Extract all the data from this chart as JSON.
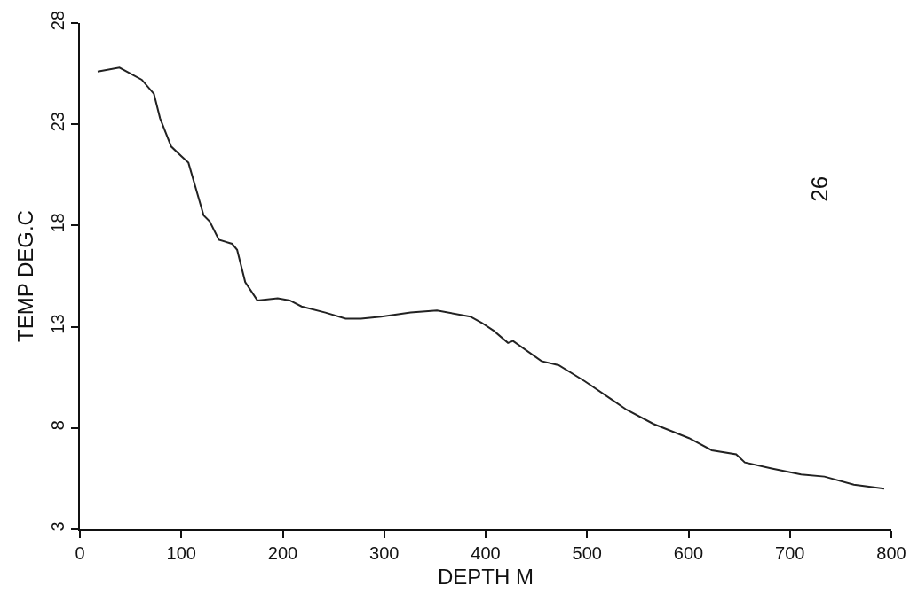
{
  "chart_data": {
    "type": "line",
    "xlabel": "DEPTH M",
    "ylabel": "TEMP DEG.C",
    "annotations": [
      "26"
    ],
    "x": [
      17.5,
      39,
      61,
      73,
      79,
      90,
      100.5,
      107,
      122,
      128,
      137,
      150,
      155,
      163,
      175,
      195,
      207,
      218.5,
      242,
      262,
      277,
      297,
      326,
      352,
      385,
      396,
      408,
      422,
      427,
      455,
      472,
      498,
      524.5,
      539,
      565.5,
      600.5,
      623,
      647,
      655.5,
      682,
      711,
      734,
      763,
      793
    ],
    "series": [
      {
        "color": "#222222",
        "values": [
          25.6,
          25.8,
          25.2,
          24.5,
          23.3,
          21.9,
          21.4,
          21.1,
          18.5,
          18.2,
          17.3,
          17.1,
          16.8,
          15.2,
          14.3,
          14.4,
          14.3,
          14.0,
          13.7,
          13.4,
          13.4,
          13.5,
          13.7,
          13.8,
          13.5,
          13.2,
          12.8,
          12.2,
          12.3,
          11.3,
          11.1,
          10.3,
          9.4,
          8.9,
          8.2,
          7.5,
          6.9,
          6.7,
          6.3,
          6.0,
          5.7,
          5.6,
          5.2,
          5.0
        ]
      }
    ],
    "xlim": [
      0,
      800
    ],
    "xticks": [
      0,
      100,
      200,
      300,
      400,
      500,
      600,
      700,
      800
    ],
    "ylim": [
      3,
      28
    ],
    "yticks": [
      3,
      8,
      13,
      18,
      23,
      28
    ],
    "line_style": "solid",
    "marker": "none"
  }
}
